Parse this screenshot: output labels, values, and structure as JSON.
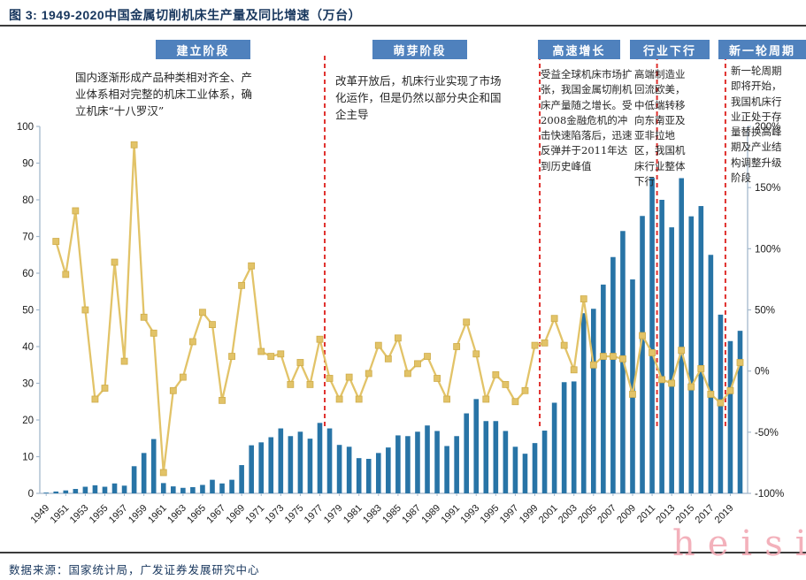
{
  "header": {
    "title": "图 3: 1949-2020中国金属切削机床生产量及同比增速（万台）"
  },
  "phases": [
    {
      "label": "建立阶段",
      "text": "国内逐渐形成产品种类相对齐全、产业体系相对完整的机床工业体系，确立机床“十八罗汉”"
    },
    {
      "label": "萌芽阶段",
      "text": "改革开放后，机床行业实现了市场化运作，但是仍然以部分央企和国企主导"
    },
    {
      "label": "高速增长",
      "text": "受益全球机床市场扩张，我国金属切削机床产量随之增长。受2008金融危机的冲击快速陷落后，迅速反弹并于2011年达到历史峰值"
    },
    {
      "label": "行业下行",
      "text": "高端制造业回流欧美，中低端转移向东南亚及亚非拉地区，我国机床行业整体下行"
    },
    {
      "label": "新一轮周期",
      "text": "新一轮周期即将开始，我国机床行业正处于存量替换高峰期及产业结构调整升级阶段"
    }
  ],
  "footer": {
    "source": "数据来源：国家统计局，广发证券发展研究中心"
  },
  "watermark": {
    "text": "heisi",
    "color": "#F2A9B4"
  },
  "chart_data": {
    "type": "combo-bar-line",
    "title": "1949-2020中国金属切削机床生产量及同比增速（万台）",
    "grid": false,
    "legend": "none",
    "x": [
      1949,
      1950,
      1951,
      1952,
      1953,
      1954,
      1955,
      1956,
      1957,
      1958,
      1959,
      1960,
      1961,
      1962,
      1963,
      1964,
      1965,
      1966,
      1967,
      1968,
      1969,
      1970,
      1971,
      1972,
      1973,
      1974,
      1975,
      1976,
      1977,
      1978,
      1979,
      1980,
      1981,
      1982,
      1983,
      1984,
      1985,
      1986,
      1987,
      1988,
      1989,
      1990,
      1991,
      1992,
      1993,
      1994,
      1995,
      1996,
      1997,
      1998,
      1999,
      2000,
      2001,
      2002,
      2003,
      2004,
      2005,
      2006,
      2007,
      2008,
      2009,
      2010,
      2011,
      2012,
      2013,
      2014,
      2015,
      2016,
      2017,
      2018,
      2019,
      2020
    ],
    "x_tick_labels": [
      1949,
      1951,
      1953,
      1955,
      1957,
      1959,
      1961,
      1963,
      1965,
      1967,
      1969,
      1971,
      1973,
      1975,
      1977,
      1979,
      1981,
      1983,
      1985,
      1987,
      1989,
      1991,
      1993,
      1995,
      1997,
      1999,
      2001,
      2003,
      2005,
      2007,
      2009,
      2011,
      2013,
      2015,
      2017,
      2019
    ],
    "series": [
      {
        "name": "金属切削机床产量（万台）",
        "type": "bar",
        "axis": "left",
        "color": "#2874A6",
        "values": [
          0.2,
          0.5,
          0.8,
          1.2,
          1.8,
          2.2,
          1.8,
          2.7,
          2.1,
          7.4,
          11.0,
          14.8,
          2.8,
          1.9,
          1.5,
          1.7,
          2.3,
          3.7,
          2.7,
          3.7,
          7.7,
          13.1,
          13.9,
          15.3,
          17.7,
          15.6,
          16.8,
          14.9,
          19.2,
          17.7,
          13.2,
          12.7,
          9.6,
          9.4,
          11.0,
          12.5,
          15.8,
          15.6,
          16.8,
          18.5,
          17.0,
          12.9,
          15.6,
          21.8,
          25.7,
          19.7,
          19.7,
          17.0,
          12.7,
          10.8,
          13.7,
          17.1,
          24.7,
          30.3,
          30.5,
          49.1,
          50.3,
          56.9,
          64.4,
          71.5,
          58.3,
          75.6,
          86.0,
          80.0,
          72.5,
          85.9,
          75.5,
          78.3,
          65.0,
          48.7,
          41.5,
          44.3
        ]
      },
      {
        "name": "同比增速",
        "type": "line",
        "axis": "right",
        "color": "#E2C368",
        "marker": "square",
        "values": [
          null,
          106,
          79,
          131,
          50,
          -23,
          -14,
          89,
          8,
          185,
          44,
          31,
          -83,
          -16,
          -5,
          24,
          48,
          38,
          -24,
          12,
          70,
          86,
          16,
          12,
          14,
          -11,
          7,
          -11,
          26,
          -6,
          -23,
          -5,
          -23,
          -2,
          21,
          10,
          27,
          -2,
          6,
          12,
          -6,
          -23,
          20,
          40,
          14,
          -23,
          -3,
          -11,
          -25,
          -16,
          21,
          23,
          43,
          21,
          1,
          59,
          5,
          12,
          12,
          10,
          -19,
          29,
          15,
          -7,
          -10,
          17,
          -13,
          2,
          -19,
          -26,
          -16,
          7
        ]
      }
    ],
    "left_axis": {
      "min": 0,
      "max": 100,
      "step": 10
    },
    "right_axis": {
      "min": -100,
      "max": 200,
      "step": 50,
      "suffix": "%"
    },
    "phase_dividers_after_year": [
      1977,
      1999,
      2011,
      2018
    ],
    "divider_color": "#E0312E",
    "axis_color": "#A3B8CC",
    "phase_box_color": "#4F81BD"
  }
}
